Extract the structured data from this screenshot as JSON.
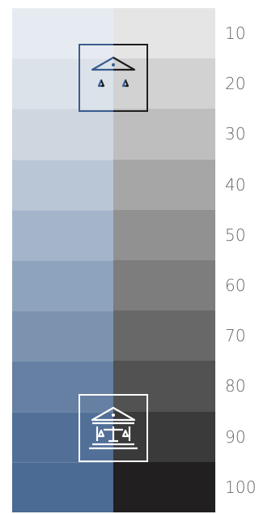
{
  "scale": {
    "steps": [
      {
        "label": "10",
        "blue": "#e6ebf1",
        "gray": "#e5e5e6"
      },
      {
        "label": "20",
        "blue": "#dbe2e9",
        "gray": "#d2d2d3"
      },
      {
        "label": "30",
        "blue": "#cfd6e0",
        "gray": "#bebebe"
      },
      {
        "label": "40",
        "blue": "#b9c6d5",
        "gray": "#a6a6a7"
      },
      {
        "label": "50",
        "blue": "#a4b4cb",
        "gray": "#919192"
      },
      {
        "label": "60",
        "blue": "#8ea3bd",
        "gray": "#7d7d7e"
      },
      {
        "label": "70",
        "blue": "#7c93b0",
        "gray": "#686869"
      },
      {
        "label": "80",
        "blue": "#6580a2",
        "gray": "#525253"
      },
      {
        "label": "90",
        "blue": "#526f98",
        "gray": "#3a3a3b"
      },
      {
        "label": "100",
        "blue": "#4b6a94",
        "gray": "#221f20"
      }
    ]
  },
  "badges": [
    {
      "icon": "courthouse-scales-icon",
      "tint_left": "#3b5c8f",
      "tint_right": "#1e1e1e"
    },
    {
      "icon": "courthouse-scales-icon",
      "tint_left": "#ffffff",
      "tint_right": "#ffffff"
    }
  ]
}
